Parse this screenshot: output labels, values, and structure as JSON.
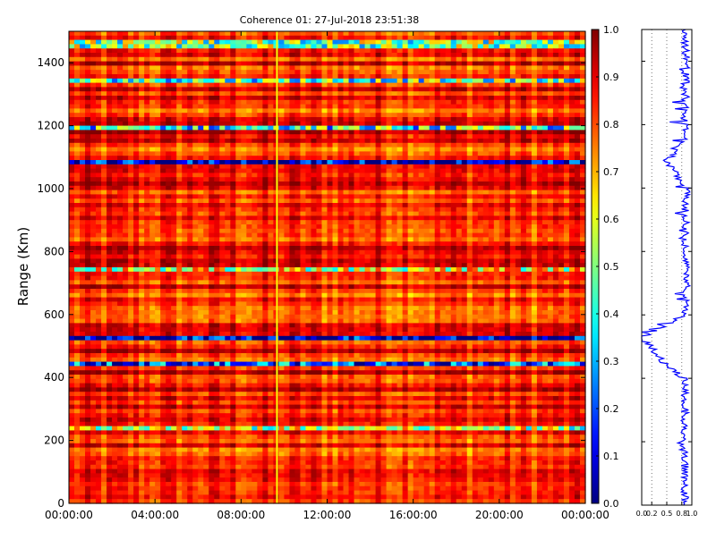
{
  "chart_data": [
    {
      "type": "heatmap",
      "title": "Coherence 01: 27-Jul-2018 23:51:38",
      "xlabel": "",
      "ylabel": "Range (Km)",
      "x_ticks": [
        "00:00:00",
        "04:00:00",
        "08:00:00",
        "12:00:00",
        "16:00:00",
        "20:00:00",
        "00:00:00"
      ],
      "xlim_hours": [
        0,
        24
      ],
      "y_ticks": [
        0,
        200,
        400,
        600,
        800,
        1000,
        1200,
        1400
      ],
      "ylim": [
        0,
        1500
      ],
      "colormap": "jet",
      "colorbar_ticks": [
        "0.0",
        "0.1",
        "0.2",
        "0.3",
        "0.4",
        "0.5",
        "0.6",
        "0.7",
        "0.8",
        "0.9",
        "1.0"
      ],
      "colorbar_range": [
        0,
        1
      ],
      "typical_value": 0.85,
      "low_coherence_bands": [
        {
          "range_km": 1085,
          "value": 0.05
        },
        {
          "range_km": 1190,
          "value": 0.4
        },
        {
          "range_km": 1340,
          "value": 0.45
        },
        {
          "range_km": 1460,
          "value": 0.5
        },
        {
          "range_km": 740,
          "value": 0.6
        },
        {
          "range_km": 530,
          "value": 0.05
        },
        {
          "range_km": 440,
          "value": 0.2
        },
        {
          "range_km": 235,
          "value": 0.55
        }
      ],
      "notes_visible": "vertical artifact line near 09:40"
    },
    {
      "type": "line",
      "x_ticks": [
        "0.0",
        "0.2",
        "0.5",
        "0.8",
        "1.0"
      ],
      "xlim": [
        0,
        1
      ],
      "ylim": [
        0,
        1500
      ],
      "grid": true,
      "series_color": "#0000ff",
      "profile": [
        {
          "range_km": 0,
          "value": 0.85
        },
        {
          "range_km": 100,
          "value": 0.88
        },
        {
          "range_km": 200,
          "value": 0.82
        },
        {
          "range_km": 300,
          "value": 0.86
        },
        {
          "range_km": 400,
          "value": 0.84
        },
        {
          "range_km": 440,
          "value": 0.5
        },
        {
          "range_km": 530,
          "value": 0.0
        },
        {
          "range_km": 600,
          "value": 0.86
        },
        {
          "range_km": 700,
          "value": 0.9
        },
        {
          "range_km": 800,
          "value": 0.85
        },
        {
          "range_km": 900,
          "value": 0.88
        },
        {
          "range_km": 1000,
          "value": 0.9
        },
        {
          "range_km": 1085,
          "value": 0.5
        },
        {
          "range_km": 1150,
          "value": 0.88
        },
        {
          "range_km": 1200,
          "value": 0.85
        },
        {
          "range_km": 1300,
          "value": 0.87
        },
        {
          "range_km": 1400,
          "value": 0.88
        },
        {
          "range_km": 1500,
          "value": 0.86
        }
      ]
    }
  ],
  "colors": {
    "jet_stops": [
      "#00007f",
      "#0000ff",
      "#007fff",
      "#00ffff",
      "#7fff7f",
      "#ffff00",
      "#ff7f00",
      "#ff0000",
      "#7f0000"
    ]
  }
}
